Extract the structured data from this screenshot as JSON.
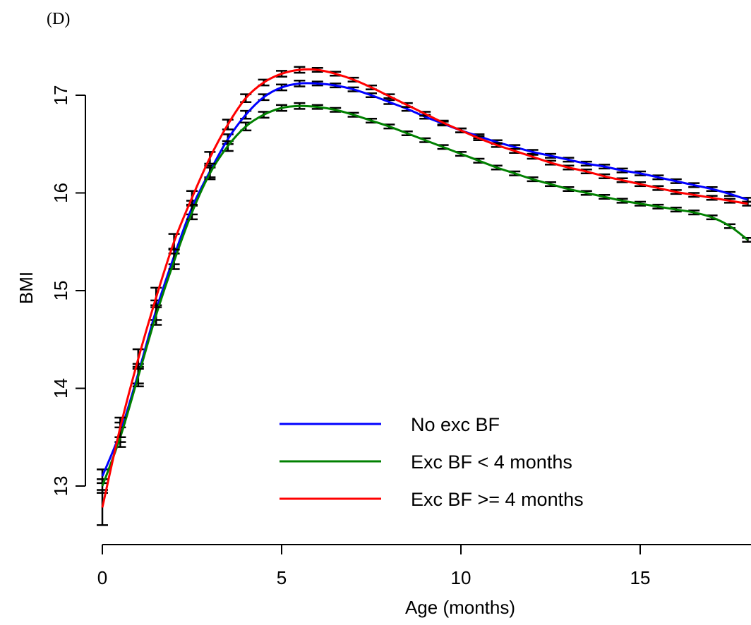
{
  "panel_label": "(D)",
  "chart_data": {
    "type": "line",
    "title": "",
    "xlabel": "Age (months)",
    "ylabel": "BMI",
    "xlim": [
      -0.5,
      18.2
    ],
    "ylim": [
      12.45,
      17.5
    ],
    "xticks": [
      0,
      5,
      10,
      15
    ],
    "yticks": [
      13,
      14,
      15,
      16,
      17
    ],
    "grid": false,
    "legend_position": "bottom-center",
    "error_bars": true,
    "series": [
      {
        "name": "No exc BF",
        "color": "#0000ff",
        "x": [
          0,
          0.5,
          1,
          1.5,
          2,
          2.5,
          3,
          3.5,
          4,
          4.5,
          5,
          5.5,
          6,
          6.5,
          7,
          7.5,
          8,
          8.5,
          9,
          9.5,
          10,
          10.5,
          11,
          11.5,
          12,
          12.5,
          13,
          13.5,
          14,
          14.5,
          15,
          15.5,
          16,
          16.5,
          17,
          17.5,
          18
        ],
        "y": [
          13.1,
          13.55,
          14.15,
          14.8,
          15.35,
          15.85,
          16.22,
          16.55,
          16.8,
          16.98,
          17.08,
          17.12,
          17.12,
          17.1,
          17.06,
          17.0,
          16.93,
          16.86,
          16.78,
          16.71,
          16.64,
          16.58,
          16.52,
          16.47,
          16.42,
          16.38,
          16.34,
          16.3,
          16.27,
          16.23,
          16.2,
          16.16,
          16.12,
          16.08,
          16.04,
          15.99,
          15.93
        ],
        "err": [
          0.07,
          0.1,
          0.1,
          0.1,
          0.08,
          0.07,
          0.06,
          0.05,
          0.04,
          0.03,
          0.03,
          0.03,
          0.02,
          0.02,
          0.02,
          0.02,
          0.02,
          0.02,
          0.02,
          0.02,
          0.02,
          0.02,
          0.02,
          0.02,
          0.02,
          0.02,
          0.02,
          0.02,
          0.02,
          0.02,
          0.02,
          0.02,
          0.02,
          0.02,
          0.02,
          0.02,
          0.02
        ]
      },
      {
        "name": "Exc BF < 4 months",
        "color": "#008000",
        "x": [
          0,
          0.5,
          1,
          1.5,
          2,
          2.5,
          3,
          3.5,
          4,
          4.5,
          5,
          5.5,
          6,
          6.5,
          7,
          7.5,
          8,
          8.5,
          9,
          9.5,
          10,
          10.5,
          11,
          11.5,
          12,
          12.5,
          13,
          13.5,
          14,
          14.5,
          15,
          15.5,
          16,
          16.5,
          17,
          17.5,
          18
        ],
        "y": [
          13.0,
          13.5,
          14.12,
          14.75,
          15.3,
          15.8,
          16.2,
          16.48,
          16.68,
          16.8,
          16.87,
          16.89,
          16.88,
          16.85,
          16.8,
          16.74,
          16.68,
          16.61,
          16.54,
          16.47,
          16.4,
          16.33,
          16.26,
          16.2,
          16.14,
          16.09,
          16.04,
          16.0,
          15.96,
          15.92,
          15.89,
          15.86,
          15.83,
          15.8,
          15.75,
          15.66,
          15.52
        ],
        "err": [
          0.07,
          0.1,
          0.1,
          0.1,
          0.08,
          0.07,
          0.06,
          0.05,
          0.04,
          0.03,
          0.03,
          0.03,
          0.02,
          0.02,
          0.02,
          0.02,
          0.02,
          0.02,
          0.02,
          0.02,
          0.02,
          0.02,
          0.02,
          0.02,
          0.02,
          0.02,
          0.02,
          0.02,
          0.02,
          0.02,
          0.02,
          0.02,
          0.02,
          0.02,
          0.02,
          0.02,
          0.02
        ]
      },
      {
        "name": "Exc BF >= 4 months",
        "color": "#ff0000",
        "x": [
          0,
          0.5,
          1,
          1.5,
          2,
          2.5,
          3,
          3.5,
          4,
          4.5,
          5,
          5.5,
          6,
          6.5,
          7,
          7.5,
          8,
          8.5,
          9,
          9.5,
          10,
          10.5,
          11,
          11.5,
          12,
          12.5,
          13,
          13.5,
          14,
          14.5,
          15,
          15.5,
          16,
          16.5,
          17,
          17.5,
          18
        ],
        "y": [
          12.78,
          13.6,
          14.3,
          14.93,
          15.5,
          15.95,
          16.36,
          16.7,
          16.97,
          17.13,
          17.22,
          17.26,
          17.26,
          17.22,
          17.16,
          17.08,
          16.99,
          16.9,
          16.81,
          16.72,
          16.64,
          16.56,
          16.49,
          16.43,
          16.37,
          16.31,
          16.26,
          16.22,
          16.17,
          16.13,
          16.09,
          16.05,
          16.01,
          15.98,
          15.95,
          15.92,
          15.89
        ],
        "err": [
          0.18,
          0.1,
          0.1,
          0.1,
          0.08,
          0.07,
          0.06,
          0.05,
          0.04,
          0.03,
          0.03,
          0.03,
          0.02,
          0.02,
          0.02,
          0.02,
          0.02,
          0.02,
          0.02,
          0.02,
          0.02,
          0.02,
          0.02,
          0.02,
          0.02,
          0.02,
          0.02,
          0.02,
          0.02,
          0.02,
          0.02,
          0.02,
          0.02,
          0.02,
          0.02,
          0.02,
          0.02
        ]
      }
    ]
  }
}
